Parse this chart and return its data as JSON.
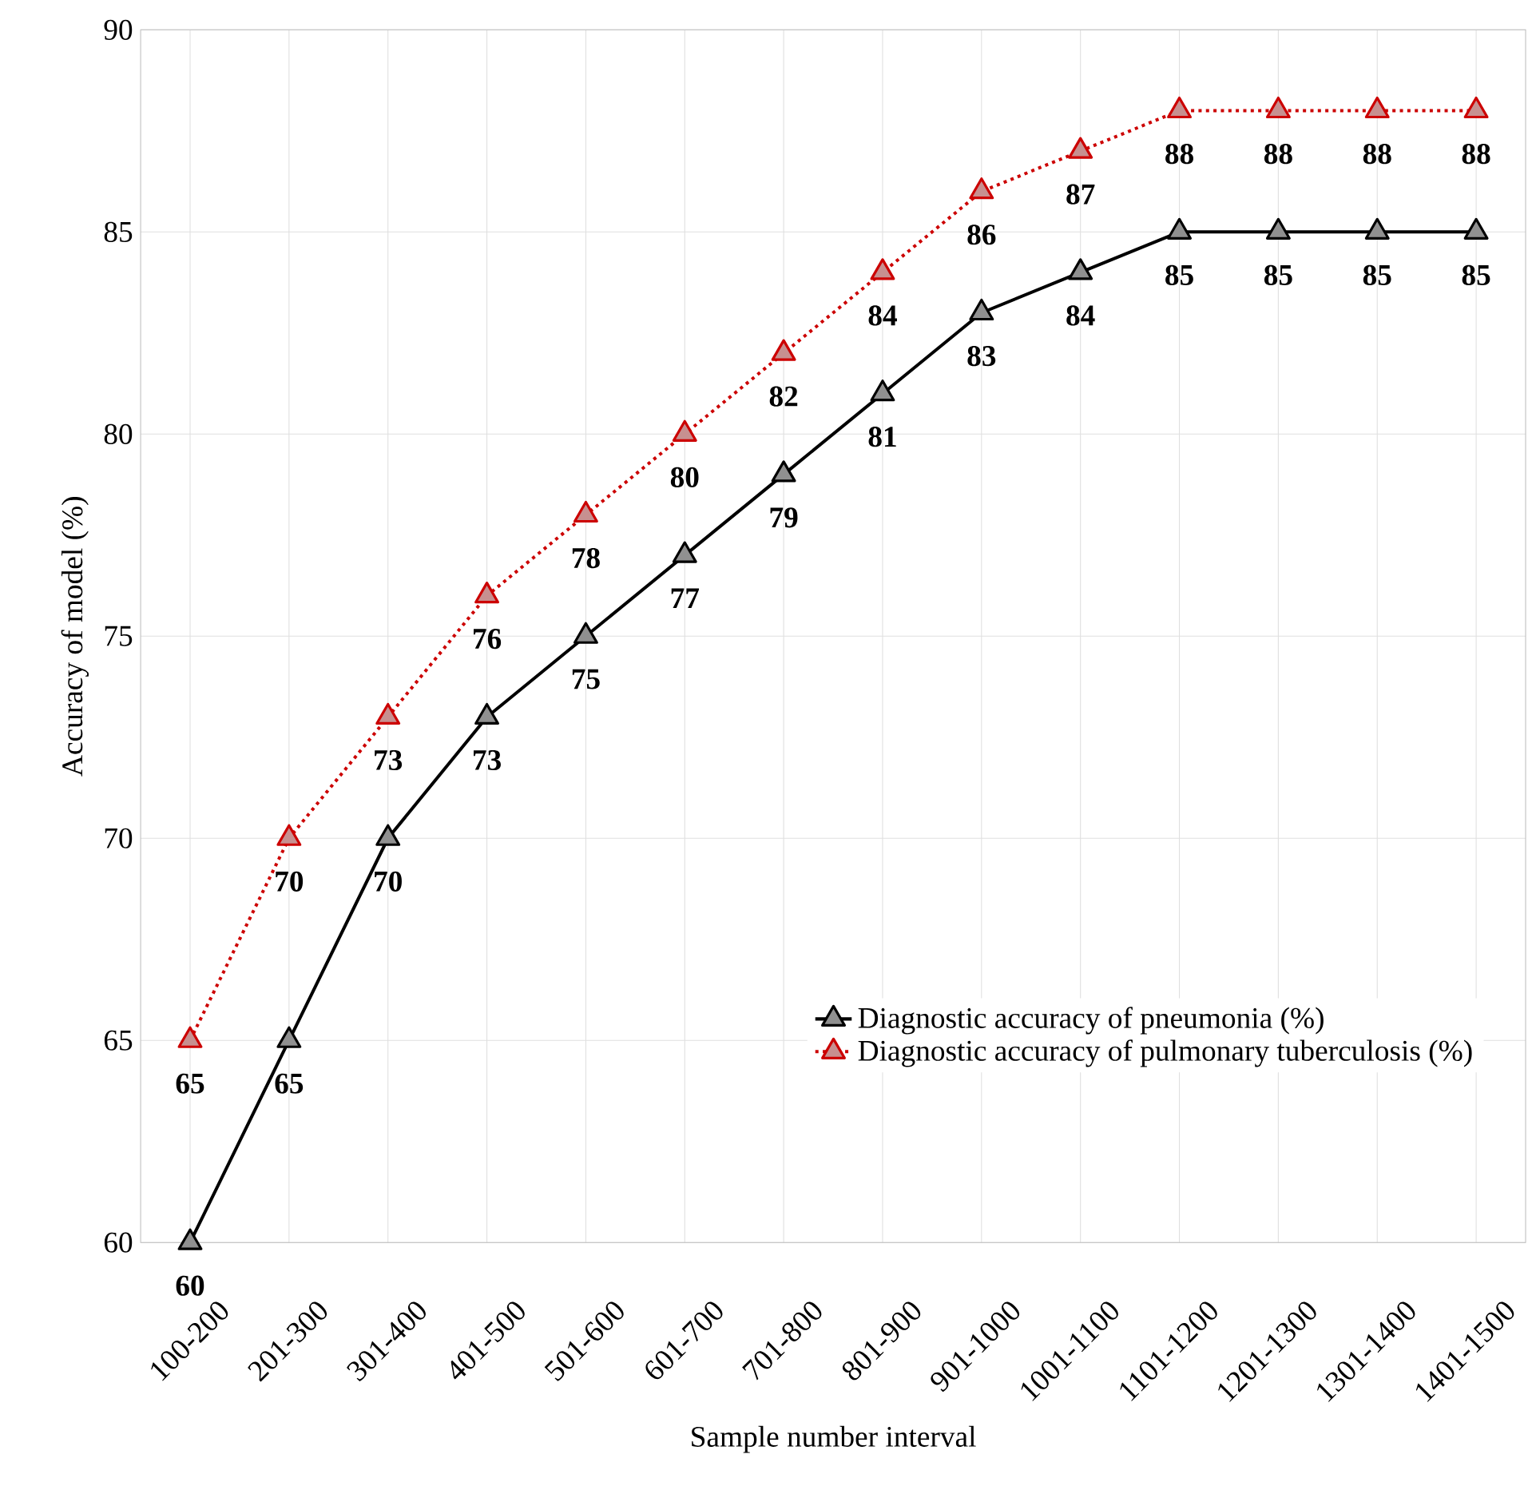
{
  "chart_data": {
    "type": "line",
    "xlabel": "Sample number interval",
    "ylabel": "Accuracy of model (%)",
    "categories": [
      "100-200",
      "201-300",
      "301-400",
      "401-500",
      "501-600",
      "601-700",
      "701-800",
      "801-900",
      "901-1000",
      "1001-1100",
      "1101-1200",
      "1201-1300",
      "1301-1400",
      "1401-1500"
    ],
    "series": [
      {
        "name": "Diagnostic accuracy of pneumonia (%)",
        "color": "#000000",
        "line_style": "solid",
        "values": [
          60,
          65,
          70,
          73,
          75,
          77,
          79,
          81,
          83,
          84,
          85,
          85,
          85,
          85
        ]
      },
      {
        "name": "Diagnostic accuracy of pulmonary tuberculosis (%)",
        "color": "#cc0000",
        "line_style": "dotted",
        "values": [
          65,
          70,
          73,
          76,
          78,
          80,
          82,
          84,
          86,
          87,
          88,
          88,
          88,
          88
        ]
      }
    ],
    "ylim": [
      60,
      90
    ],
    "yticks": [
      60,
      65,
      70,
      75,
      80,
      85,
      90
    ],
    "grid": true,
    "legend": "bottom right",
    "marker": "triangle",
    "data_labels": true
  }
}
